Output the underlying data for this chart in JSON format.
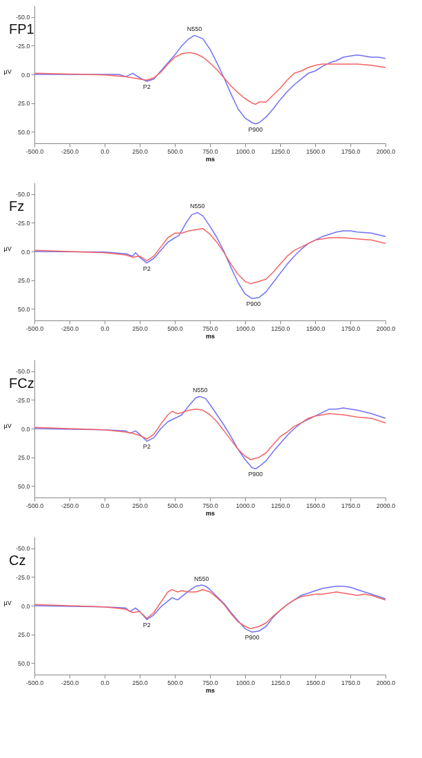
{
  "chart_data": [
    {
      "type": "line",
      "title": "FP1",
      "xlabel": "ms",
      "ylabel": "µV",
      "xlim": [
        -500,
        2000
      ],
      "ylim": [
        60,
        -60
      ],
      "grid": false,
      "xticks": [
        {
          "value": -500,
          "label": "-500.0"
        },
        {
          "value": -250,
          "label": "-250.0"
        },
        {
          "value": 0,
          "label": "0.0"
        },
        {
          "value": 250,
          "label": "250.0"
        },
        {
          "value": 500,
          "label": "500.0"
        },
        {
          "value": 750,
          "label": "750.0"
        },
        {
          "value": 1000,
          "label": "1000.0"
        },
        {
          "value": 1250,
          "label": "1250.0"
        },
        {
          "value": 1500,
          "label": "1500.0"
        },
        {
          "value": 1750,
          "label": "1750.0"
        },
        {
          "value": 2000,
          "label": "2000.0"
        }
      ],
      "yticks": [
        {
          "value": -50,
          "label": "-50.0"
        },
        {
          "value": -25,
          "label": "-25.0"
        },
        {
          "value": 0,
          "label": "0.0"
        },
        {
          "value": 25,
          "label": "25.0"
        },
        {
          "value": 50,
          "label": "50.0"
        }
      ],
      "annotations": [
        {
          "text": "N550",
          "x": 640,
          "y": -34
        },
        {
          "text": "P2",
          "x": 300,
          "y": 6
        },
        {
          "text": "P900",
          "x": 1075,
          "y": 43
        }
      ],
      "series": [
        {
          "color": "#6f6ff5",
          "x": [
            -500,
            -250,
            0,
            100,
            150,
            200,
            250,
            300,
            350,
            400,
            450,
            500,
            550,
            600,
            640,
            700,
            750,
            800,
            850,
            900,
            950,
            1000,
            1050,
            1075,
            1100,
            1150,
            1200,
            1250,
            1300,
            1350,
            1400,
            1450,
            1500,
            1550,
            1600,
            1650,
            1700,
            1750,
            1800,
            1900,
            1950,
            2000
          ],
          "values": [
            0,
            0,
            0,
            0,
            2,
            -1,
            3,
            6,
            4,
            -3,
            -10,
            -17,
            -25,
            -31,
            -34,
            -31,
            -22,
            -10,
            3,
            17,
            30,
            38,
            42,
            43,
            42,
            37,
            30,
            22,
            15,
            9,
            4,
            -1,
            -3,
            -7,
            -10,
            -12,
            -15,
            -16,
            -17,
            -15,
            -15,
            -14
          ]
        },
        {
          "color": "#f56262",
          "x": [
            -500,
            0,
            150,
            250,
            300,
            350,
            400,
            450,
            500,
            550,
            600,
            650,
            700,
            750,
            800,
            850,
            900,
            950,
            1000,
            1050,
            1075,
            1100,
            1150,
            1200,
            1250,
            1300,
            1350,
            1400,
            1450,
            1500,
            1550,
            1600,
            1700,
            1800,
            1900,
            2000
          ],
          "values": [
            -1,
            0.5,
            2,
            4,
            5,
            3,
            -2,
            -9,
            -15,
            -18,
            -19,
            -18,
            -15,
            -10,
            -4,
            3,
            10,
            16,
            21,
            25,
            26,
            24,
            24,
            18,
            12,
            5,
            -1,
            -3,
            -6,
            -8,
            -9,
            -9,
            -9,
            -9,
            -8,
            -6
          ]
        }
      ]
    },
    {
      "type": "line",
      "title": "Fz",
      "xlabel": "ms",
      "ylabel": "µV",
      "xlim": [
        -500,
        2000
      ],
      "ylim": [
        60,
        -60
      ],
      "grid": false,
      "xticks": [
        {
          "value": -500,
          "label": "-500.0"
        },
        {
          "value": -250,
          "label": "-250.0"
        },
        {
          "value": 0,
          "label": "0.0"
        },
        {
          "value": 250,
          "label": "250.0"
        },
        {
          "value": 500,
          "label": "500.0"
        },
        {
          "value": 750,
          "label": "750.0"
        },
        {
          "value": 1000,
          "label": "1000.0"
        },
        {
          "value": 1250,
          "label": "1250.0"
        },
        {
          "value": 1500,
          "label": "1500.0"
        },
        {
          "value": 1750,
          "label": "1750.0"
        },
        {
          "value": 2000,
          "label": "2000.0"
        }
      ],
      "yticks": [
        {
          "value": -50,
          "label": "-50.0"
        },
        {
          "value": -25,
          "label": "-25.0"
        },
        {
          "value": 0,
          "label": "0.0"
        },
        {
          "value": 25,
          "label": "25.0"
        },
        {
          "value": 50,
          "label": "50.0"
        }
      ],
      "annotations": [
        {
          "text": "N550",
          "x": 660,
          "y": -34
        },
        {
          "text": "P2",
          "x": 300,
          "y": 10
        },
        {
          "text": "P900",
          "x": 1060,
          "y": 41
        }
      ],
      "series": [
        {
          "color": "#6f6ff5",
          "x": [
            -500,
            0,
            150,
            200,
            220,
            250,
            300,
            350,
            400,
            450,
            500,
            530,
            580,
            620,
            660,
            700,
            750,
            800,
            850,
            900,
            950,
            1000,
            1050,
            1100,
            1150,
            1200,
            1250,
            1300,
            1350,
            1400,
            1450,
            1500,
            1550,
            1600,
            1650,
            1700,
            1750,
            1800,
            1900,
            2000
          ],
          "values": [
            0,
            0.5,
            2,
            4,
            1,
            5,
            10,
            6,
            -1,
            -8,
            -12,
            -14,
            -25,
            -32,
            -34,
            -31,
            -22,
            -12,
            0,
            14,
            27,
            37,
            41,
            40,
            35,
            27,
            19,
            11,
            4,
            -2,
            -7,
            -10,
            -13,
            -15,
            -17,
            -18,
            -18,
            -17,
            -16,
            -13
          ]
        },
        {
          "color": "#f56262",
          "x": [
            -500,
            0,
            150,
            200,
            250,
            300,
            350,
            400,
            450,
            500,
            550,
            600,
            650,
            700,
            750,
            800,
            850,
            900,
            950,
            1000,
            1040,
            1100,
            1150,
            1200,
            1250,
            1300,
            1350,
            1400,
            1450,
            1500,
            1550,
            1600,
            1700,
            1800,
            1900,
            2000
          ],
          "values": [
            -1,
            1,
            3,
            5,
            4,
            8,
            4,
            -4,
            -12,
            -16,
            -16,
            -18,
            -19,
            -20,
            -15,
            -8,
            1,
            11,
            20,
            26,
            28,
            26,
            24,
            18,
            11,
            4,
            -1,
            -4,
            -7,
            -10,
            -11,
            -12,
            -12,
            -11,
            -10,
            -7
          ]
        }
      ]
    },
    {
      "type": "line",
      "title": "FCz",
      "xlabel": "ms",
      "ylabel": "µV",
      "xlim": [
        -500,
        2000
      ],
      "ylim": [
        60,
        -60
      ],
      "grid": false,
      "xticks": [
        {
          "value": -500,
          "label": "-500.0"
        },
        {
          "value": -250,
          "label": "-250.0"
        },
        {
          "value": 0,
          "label": "0.0"
        },
        {
          "value": 250,
          "label": "250.0"
        },
        {
          "value": 500,
          "label": "500.0"
        },
        {
          "value": 750,
          "label": "750.0"
        },
        {
          "value": 1000,
          "label": "1000.0"
        },
        {
          "value": 1250,
          "label": "1250.0"
        },
        {
          "value": 1500,
          "label": "1500.0"
        },
        {
          "value": 1750,
          "label": "1750.0"
        },
        {
          "value": 2000,
          "label": "2000.0"
        }
      ],
      "yticks": [
        {
          "value": -50,
          "label": "-50.0"
        },
        {
          "value": -25,
          "label": "-25.0"
        },
        {
          "value": 0,
          "label": "0.0"
        },
        {
          "value": 25,
          "label": "25.0"
        },
        {
          "value": 50,
          "label": "50.0"
        }
      ],
      "annotations": [
        {
          "text": "N550",
          "x": 680,
          "y": -28
        },
        {
          "text": "P2",
          "x": 300,
          "y": 11
        },
        {
          "text": "P900",
          "x": 1075,
          "y": 35
        }
      ],
      "series": [
        {
          "color": "#6f6ff5",
          "x": [
            -500,
            0,
            150,
            180,
            220,
            250,
            300,
            350,
            400,
            450,
            500,
            550,
            600,
            650,
            680,
            720,
            750,
            800,
            850,
            900,
            950,
            1000,
            1050,
            1075,
            1100,
            1150,
            1200,
            1250,
            1300,
            1350,
            1400,
            1450,
            1500,
            1550,
            1600,
            1650,
            1700,
            1750,
            1800,
            1900,
            2000
          ],
          "values": [
            0,
            1,
            2,
            4,
            2,
            5,
            11,
            8,
            0,
            -6,
            -9,
            -12,
            -20,
            -27,
            -28,
            -26,
            -21,
            -12,
            -3,
            7,
            18,
            27,
            34,
            35,
            33,
            28,
            20,
            13,
            6,
            0,
            -5,
            -8,
            -11,
            -14,
            -17,
            -17,
            -18,
            -17,
            -16,
            -13,
            -9
          ]
        },
        {
          "color": "#f56262",
          "x": [
            -500,
            0,
            150,
            200,
            250,
            300,
            350,
            400,
            450,
            480,
            520,
            550,
            600,
            650,
            700,
            750,
            800,
            850,
            900,
            950,
            1000,
            1040,
            1100,
            1150,
            1200,
            1250,
            1300,
            1350,
            1400,
            1450,
            1500,
            1550,
            1600,
            1700,
            1800,
            1900,
            2000
          ],
          "values": [
            -1,
            1,
            3,
            4,
            6,
            9,
            5,
            -4,
            -12,
            -15,
            -13,
            -14,
            -16,
            -17,
            -16,
            -12,
            -6,
            2,
            10,
            18,
            24,
            27,
            25,
            21,
            14,
            7,
            3,
            -2,
            -5,
            -9,
            -11,
            -12,
            -13,
            -12,
            -10,
            -9,
            -5
          ]
        }
      ]
    },
    {
      "type": "line",
      "title": "Cz",
      "xlabel": "ms",
      "ylabel": "µV",
      "xlim": [
        -500,
        2000
      ],
      "ylim": [
        60,
        -60
      ],
      "grid": false,
      "xticks": [
        {
          "value": -500,
          "label": "-500.0"
        },
        {
          "value": -250,
          "label": "-250.0"
        },
        {
          "value": 0,
          "label": "0.0"
        },
        {
          "value": 250,
          "label": "250.0"
        },
        {
          "value": 500,
          "label": "500.0"
        },
        {
          "value": 750,
          "label": "750.0"
        },
        {
          "value": 1000,
          "label": "1000.0"
        },
        {
          "value": 1250,
          "label": "1250.0"
        },
        {
          "value": 1500,
          "label": "1500.0"
        },
        {
          "value": 1750,
          "label": "1750.0"
        },
        {
          "value": 2000,
          "label": "2000.0"
        }
      ],
      "yticks": [
        {
          "value": -50,
          "label": "-50.0"
        },
        {
          "value": -25,
          "label": "-25.0"
        },
        {
          "value": 0,
          "label": "0.0"
        },
        {
          "value": 25,
          "label": "25.0"
        },
        {
          "value": 50,
          "label": "50.0"
        }
      ],
      "annotations": [
        {
          "text": "N550",
          "x": 690,
          "y": -18
        },
        {
          "text": "P2",
          "x": 300,
          "y": 12
        },
        {
          "text": "P900",
          "x": 1050,
          "y": 23
        }
      ],
      "series": [
        {
          "color": "#6f6ff5",
          "x": [
            -500,
            0,
            150,
            180,
            220,
            250,
            300,
            350,
            400,
            450,
            480,
            520,
            550,
            600,
            650,
            690,
            720,
            750,
            800,
            850,
            900,
            950,
            1000,
            1050,
            1100,
            1150,
            1200,
            1250,
            1300,
            1350,
            1400,
            1450,
            1500,
            1550,
            1600,
            1650,
            1700,
            1750,
            1800,
            1900,
            2000
          ],
          "values": [
            0,
            1,
            2,
            5,
            2,
            5,
            12,
            8,
            1,
            -4,
            -7,
            -5,
            -8,
            -13,
            -17,
            -18,
            -17,
            -14,
            -8,
            -2,
            6,
            13,
            20,
            23,
            22,
            18,
            10,
            4,
            -1,
            -5,
            -9,
            -11,
            -13,
            -15,
            -16,
            -17,
            -17,
            -16,
            -14,
            -10,
            -6
          ]
        },
        {
          "color": "#f56262",
          "x": [
            -500,
            0,
            150,
            200,
            250,
            300,
            350,
            400,
            450,
            480,
            520,
            550,
            600,
            650,
            700,
            750,
            800,
            850,
            900,
            950,
            1000,
            1040,
            1100,
            1150,
            1200,
            1250,
            1300,
            1350,
            1400,
            1450,
            1500,
            1550,
            1600,
            1650,
            1700,
            1750,
            1800,
            1850,
            1900,
            2000
          ],
          "values": [
            -1,
            1,
            3,
            6,
            5,
            11,
            6,
            -3,
            -12,
            -14,
            -12,
            -13,
            -12,
            -12,
            -14,
            -12,
            -7,
            -1,
            7,
            14,
            18,
            20,
            18,
            15,
            9,
            4,
            -1,
            -5,
            -8,
            -9,
            -10,
            -10,
            -11,
            -12,
            -11,
            -10,
            -9,
            -10,
            -9,
            -5
          ]
        }
      ]
    }
  ]
}
